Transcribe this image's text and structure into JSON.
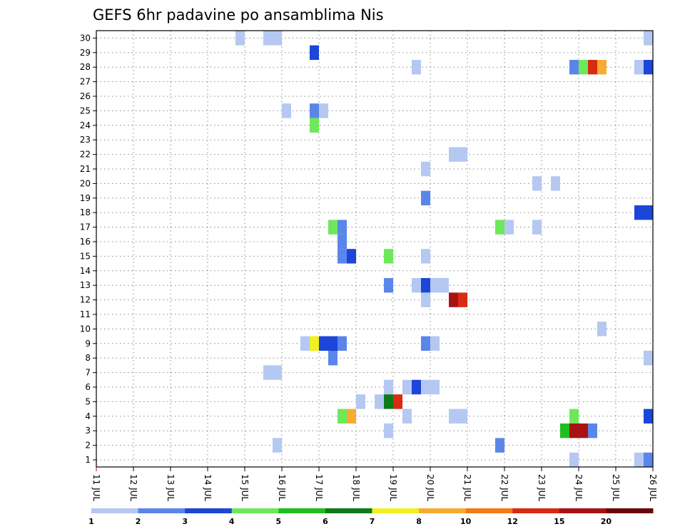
{
  "chart_data": {
    "type": "heatmap",
    "title": "GEFS 6hr padavine po ansamblima Nis",
    "xlabel": "",
    "ylabel": "",
    "x_tick_labels": [
      "11 JUL",
      "12 JUL",
      "13 JUL",
      "14 JUL",
      "15 JUL",
      "16 JUL",
      "17 JUL",
      "18 JUL",
      "19 JUL",
      "20 JUL",
      "21 JUL",
      "22 JUL",
      "23 JUL",
      "24 JUL",
      "25 JUL",
      "26 JUL"
    ],
    "y_tick_labels": [
      "1",
      "2",
      "3",
      "4",
      "5",
      "6",
      "7",
      "8",
      "9",
      "10",
      "11",
      "12",
      "13",
      "14",
      "15",
      "16",
      "17",
      "18",
      "19",
      "20",
      "21",
      "22",
      "23",
      "24",
      "25",
      "26",
      "27",
      "28",
      "29",
      "30"
    ],
    "y_range": [
      1,
      30
    ],
    "grid": true,
    "legend_position": "bottom",
    "legend_labels": [
      "1",
      "2",
      "3",
      "4",
      "5",
      "6",
      "7",
      "8",
      "10",
      "12",
      "15",
      "20"
    ],
    "colors": [
      "#b4c8f2",
      "#5a86ea",
      "#1b46d8",
      "#6ee85a",
      "#1fbe1f",
      "#0e7a18",
      "#f2ef20",
      "#f7ab31",
      "#f47a17",
      "#d92b14",
      "#a81212",
      "#6b0608"
    ],
    "cells_desc": "each cell: [member, day_of_july_start_of_6h_step, level_index]",
    "cells": [
      [
        30,
        14.75,
        0
      ],
      [
        30,
        15.5,
        0
      ],
      [
        30,
        15.75,
        0
      ],
      [
        30,
        25.75,
        0
      ],
      [
        29,
        16.75,
        2
      ],
      [
        28,
        19.5,
        0
      ],
      [
        28,
        23.75,
        1
      ],
      [
        28,
        24.0,
        3
      ],
      [
        28,
        24.25,
        9
      ],
      [
        28,
        24.5,
        7
      ],
      [
        28,
        25.5,
        0
      ],
      [
        28,
        25.75,
        2
      ],
      [
        25,
        16.0,
        0
      ],
      [
        25,
        16.75,
        1
      ],
      [
        25,
        17.0,
        0
      ],
      [
        24,
        16.75,
        3
      ],
      [
        22,
        20.5,
        0
      ],
      [
        22,
        20.75,
        0
      ],
      [
        21,
        19.75,
        0
      ],
      [
        20,
        22.75,
        0
      ],
      [
        20,
        23.25,
        0
      ],
      [
        19,
        19.75,
        1
      ],
      [
        18,
        25.5,
        2
      ],
      [
        18,
        25.75,
        2
      ],
      [
        17,
        17.25,
        3
      ],
      [
        17,
        17.5,
        1
      ],
      [
        17,
        21.75,
        3
      ],
      [
        17,
        22.0,
        0
      ],
      [
        17,
        22.75,
        0
      ],
      [
        16,
        17.5,
        1
      ],
      [
        15,
        17.5,
        1
      ],
      [
        15,
        17.75,
        2
      ],
      [
        15,
        18.75,
        3
      ],
      [
        15,
        19.75,
        0
      ],
      [
        13,
        18.75,
        1
      ],
      [
        13,
        19.5,
        0
      ],
      [
        13,
        19.75,
        2
      ],
      [
        13,
        20.0,
        0
      ],
      [
        13,
        20.25,
        0
      ],
      [
        12,
        19.75,
        0
      ],
      [
        12,
        20.5,
        10
      ],
      [
        12,
        20.75,
        9
      ],
      [
        10,
        24.5,
        0
      ],
      [
        9,
        16.5,
        0
      ],
      [
        9,
        16.75,
        6
      ],
      [
        9,
        17.0,
        2
      ],
      [
        9,
        17.25,
        2
      ],
      [
        9,
        17.5,
        1
      ],
      [
        9,
        19.75,
        1
      ],
      [
        9,
        20.0,
        0
      ],
      [
        8,
        17.25,
        1
      ],
      [
        8,
        25.75,
        0
      ],
      [
        7,
        15.5,
        0
      ],
      [
        7,
        15.75,
        0
      ],
      [
        6,
        18.75,
        0
      ],
      [
        6,
        19.25,
        0
      ],
      [
        6,
        19.5,
        2
      ],
      [
        6,
        19.75,
        0
      ],
      [
        6,
        20.0,
        0
      ],
      [
        5,
        18.0,
        0
      ],
      [
        5,
        18.5,
        0
      ],
      [
        5,
        18.75,
        5
      ],
      [
        5,
        19.0,
        9
      ],
      [
        4,
        17.5,
        3
      ],
      [
        4,
        17.75,
        7
      ],
      [
        4,
        19.25,
        0
      ],
      [
        4,
        20.5,
        0
      ],
      [
        4,
        20.75,
        0
      ],
      [
        4,
        23.75,
        3
      ],
      [
        4,
        25.75,
        2
      ],
      [
        3,
        18.75,
        0
      ],
      [
        3,
        23.5,
        4
      ],
      [
        3,
        23.75,
        10
      ],
      [
        3,
        24.0,
        10
      ],
      [
        3,
        24.25,
        1
      ],
      [
        2,
        15.75,
        0
      ],
      [
        2,
        21.75,
        1
      ],
      [
        1,
        23.75,
        0
      ],
      [
        1,
        25.5,
        0
      ],
      [
        1,
        25.75,
        1
      ]
    ]
  }
}
